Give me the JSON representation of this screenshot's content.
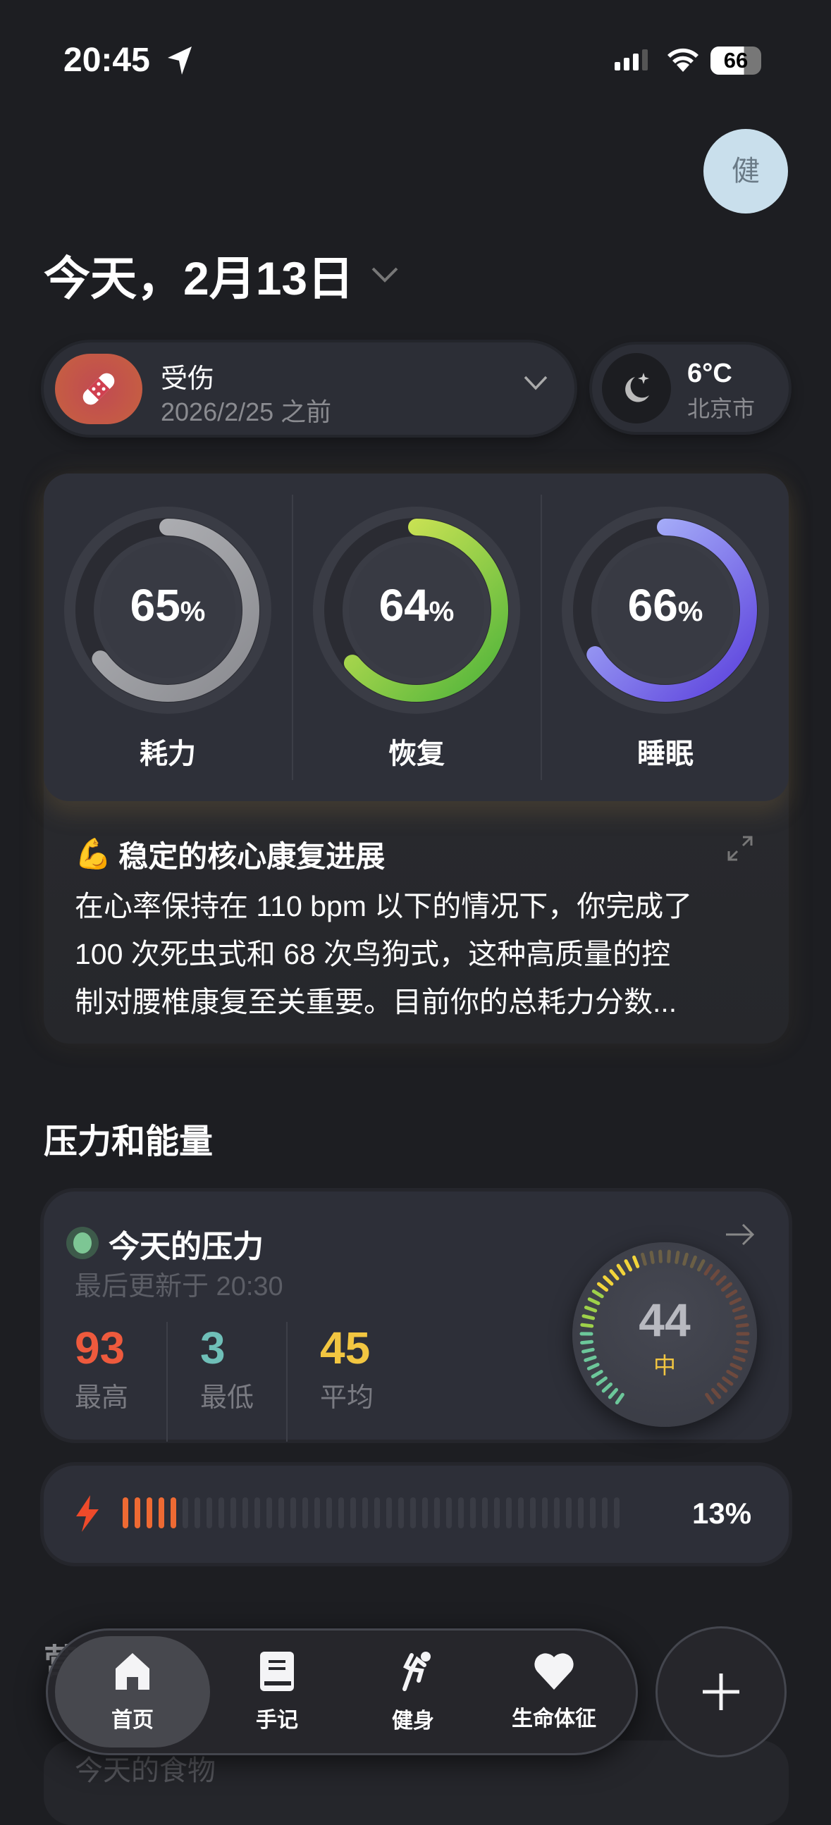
{
  "status_bar": {
    "time": "20:45",
    "battery": "66",
    "icons": [
      "location-arrow-icon",
      "signal-icon",
      "wifi-icon",
      "battery-icon"
    ]
  },
  "header": {
    "avatar": "健",
    "date": "今天，2月13日"
  },
  "injury": {
    "title": "受伤",
    "subtitle": "2026/2/25 之前",
    "icon": "bandage-icon"
  },
  "weather": {
    "temp": "6°C",
    "city": "北京市",
    "icon": "moon-stars-icon"
  },
  "rings": [
    {
      "label": "耗力",
      "value": 65,
      "unit": "%",
      "colors": [
        "#8a8b90",
        "#b5b6ba"
      ]
    },
    {
      "label": "恢复",
      "value": 64,
      "unit": "%",
      "colors": [
        "#4db33a",
        "#e9ee5a"
      ]
    },
    {
      "label": "睡眠",
      "value": 66,
      "unit": "%",
      "colors": [
        "#5a3fdc",
        "#b8c8ff"
      ]
    }
  ],
  "insight": {
    "emoji": "💪",
    "title": "稳定的核心康复进展",
    "lines": [
      "在心率保持在 110 bpm 以下的情况下，你完成了",
      "100 次死虫式和 68 次鸟狗式，这种高质量的控",
      "制对腰椎康复至关重要。目前你的总耗力分数..."
    ]
  },
  "section_title": "压力和能量",
  "stress": {
    "title": "今天的压力",
    "updated": "最后更新于 20:30",
    "stats": [
      {
        "value": "93",
        "label": "最高",
        "color": "#ee5a3d"
      },
      {
        "value": "3",
        "label": "最低",
        "color": "#6fbfb8"
      },
      {
        "value": "45",
        "label": "平均",
        "color": "#f2c641"
      }
    ],
    "gauge_value": "44",
    "gauge_label": "中"
  },
  "energy": {
    "percent": 13,
    "label": "13%",
    "color": "#ee6a33"
  },
  "below": {
    "section": "营",
    "card_title": "今天的食物"
  },
  "nav": {
    "items": [
      {
        "label": "首页",
        "icon": "home-icon"
      },
      {
        "label": "手记",
        "icon": "journal-icon"
      },
      {
        "label": "健身",
        "icon": "running-icon"
      },
      {
        "label": "生命体征",
        "icon": "heart-icon"
      }
    ],
    "add": "plus-icon"
  }
}
